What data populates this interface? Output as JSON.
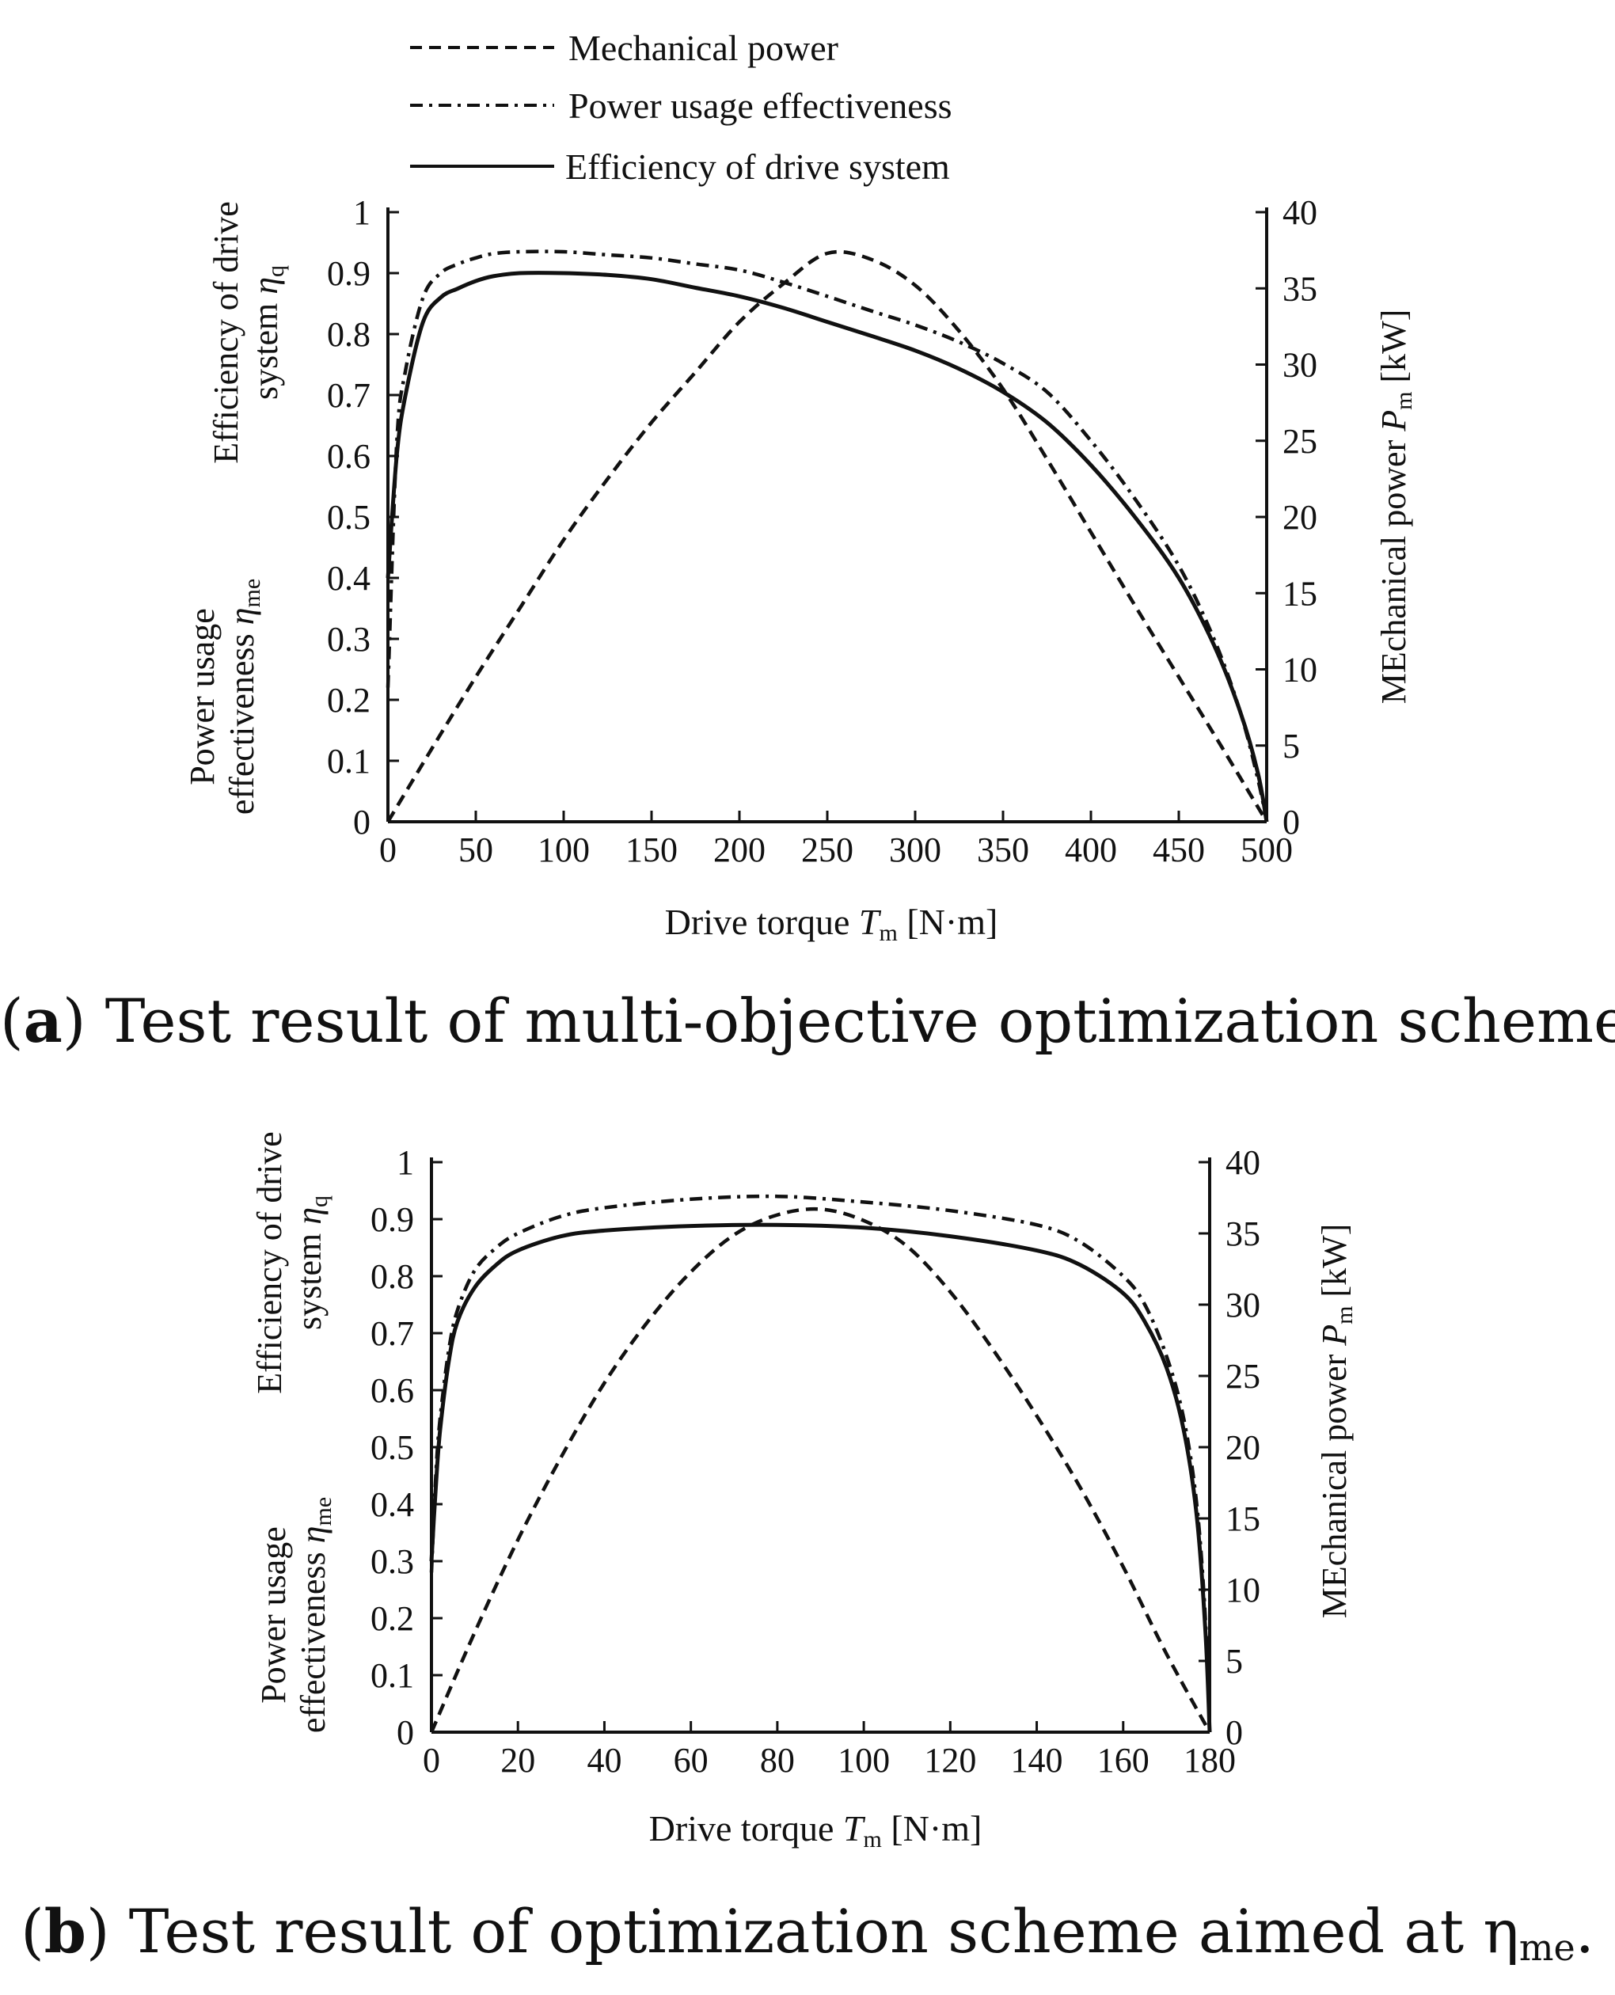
{
  "chart_data": [
    {
      "type": "line",
      "xlabel": "Drive torque T_m [N·m]",
      "xlim": [
        0,
        500
      ],
      "x_ticks": [
        "0",
        "50",
        "100",
        "150",
        "200",
        "250",
        "300",
        "350",
        "400",
        "450",
        "500"
      ],
      "ylabel_left": [
        "Power usage effectiveness η_me",
        "Efficiency of drive system η_q"
      ],
      "ylim_left": [
        0,
        1
      ],
      "y_ticks_left": [
        "0",
        "0.1",
        "0.2",
        "0.3",
        "0.4",
        "0.5",
        "0.6",
        "0.7",
        "0.8",
        "0.9",
        "1"
      ],
      "ylabel_right": "MEchanical power P_m [kW]",
      "ylim_right": [
        0,
        40
      ],
      "y_ticks_right": [
        "0",
        "5",
        "10",
        "15",
        "20",
        "25",
        "30",
        "35",
        "40"
      ],
      "grid": false,
      "legend_position": "top",
      "caption": "(a) Test result of multi-objective optimization scheme.",
      "series": [
        {
          "name": "Mechanical power",
          "axis": "right",
          "style": "dashed",
          "x": [
            0,
            25,
            50,
            75,
            100,
            125,
            150,
            175,
            200,
            225,
            250,
            275,
            300,
            325,
            350,
            375,
            400,
            425,
            450,
            475,
            500
          ],
          "y": [
            0,
            4.8,
            9.5,
            14.0,
            18.5,
            22.5,
            26.2,
            29.5,
            32.8,
            35.3,
            37.3,
            36.9,
            35.2,
            32.2,
            28.4,
            23.8,
            19.0,
            14.2,
            9.5,
            4.8,
            0
          ]
        },
        {
          "name": "Power usage effectiveness",
          "axis": "left",
          "style": "dash-dot",
          "x": [
            0,
            5,
            10,
            20,
            30,
            40,
            50,
            60,
            75,
            100,
            125,
            150,
            175,
            200,
            225,
            250,
            275,
            300,
            325,
            350,
            375,
            400,
            425,
            450,
            470,
            485,
            495,
            500
          ],
          "y": [
            0.22,
            0.62,
            0.74,
            0.86,
            0.9,
            0.915,
            0.925,
            0.932,
            0.935,
            0.935,
            0.93,
            0.925,
            0.915,
            0.905,
            0.885,
            0.862,
            0.838,
            0.815,
            0.787,
            0.752,
            0.705,
            0.625,
            0.53,
            0.42,
            0.3,
            0.18,
            0.07,
            0
          ]
        },
        {
          "name": "Efficiency of drive system",
          "axis": "left",
          "style": "solid",
          "x": [
            0,
            5,
            10,
            20,
            30,
            40,
            50,
            60,
            75,
            100,
            125,
            150,
            175,
            200,
            225,
            250,
            275,
            300,
            325,
            350,
            375,
            400,
            425,
            450,
            470,
            485,
            495,
            500
          ],
          "y": [
            0.4,
            0.6,
            0.7,
            0.82,
            0.86,
            0.875,
            0.887,
            0.895,
            0.9,
            0.9,
            0.897,
            0.89,
            0.876,
            0.862,
            0.843,
            0.82,
            0.797,
            0.773,
            0.743,
            0.705,
            0.655,
            0.585,
            0.5,
            0.4,
            0.29,
            0.18,
            0.08,
            0
          ]
        }
      ]
    },
    {
      "type": "line",
      "xlabel": "Drive torque T_m [N·m]",
      "xlim": [
        0,
        180
      ],
      "x_ticks": [
        "0",
        "20",
        "40",
        "60",
        "80",
        "100",
        "120",
        "140",
        "160",
        "180"
      ],
      "ylabel_left": [
        "Power usage effectiveness η_me",
        "Efficiency of drive system η_q"
      ],
      "ylim_left": [
        0,
        1
      ],
      "y_ticks_left": [
        "0",
        "0.1",
        "0.2",
        "0.3",
        "0.4",
        "0.5",
        "0.6",
        "0.7",
        "0.8",
        "0.9",
        "1"
      ],
      "ylabel_right": "MEchanical power P_m [kW]",
      "ylim_right": [
        0,
        40
      ],
      "y_ticks_right": [
        "0",
        "5",
        "10",
        "15",
        "20",
        "25",
        "30",
        "35",
        "40"
      ],
      "grid": false,
      "caption": "(b) Test result of optimization scheme aimed at η_me.",
      "series": [
        {
          "name": "Mechanical power",
          "axis": "right",
          "style": "dashed",
          "x": [
            0,
            10,
            20,
            30,
            40,
            50,
            60,
            70,
            80,
            90,
            100,
            110,
            120,
            130,
            140,
            150,
            160,
            170,
            180
          ],
          "y": [
            0,
            7.0,
            13.5,
            19.3,
            24.5,
            28.8,
            32.3,
            34.9,
            36.3,
            36.7,
            35.9,
            34.1,
            30.9,
            26.8,
            22.2,
            17.2,
            11.6,
            5.5,
            0
          ]
        },
        {
          "name": "Power usage effectiveness",
          "axis": "left",
          "style": "dash-dot",
          "x": [
            0,
            1,
            2,
            4,
            6,
            10,
            15,
            20,
            30,
            40,
            60,
            80,
            100,
            120,
            140,
            150,
            160,
            165,
            170,
            174,
            177,
            179,
            180
          ],
          "y": [
            0.28,
            0.45,
            0.55,
            0.67,
            0.74,
            0.81,
            0.85,
            0.875,
            0.905,
            0.92,
            0.935,
            0.94,
            0.93,
            0.915,
            0.89,
            0.86,
            0.8,
            0.75,
            0.66,
            0.55,
            0.4,
            0.2,
            0
          ]
        },
        {
          "name": "Efficiency of drive system",
          "axis": "left",
          "style": "solid",
          "x": [
            0,
            1,
            2,
            4,
            6,
            10,
            15,
            20,
            30,
            40,
            60,
            80,
            100,
            120,
            140,
            150,
            160,
            165,
            170,
            174,
            177,
            179,
            180
          ],
          "y": [
            0.3,
            0.43,
            0.53,
            0.65,
            0.72,
            0.78,
            0.82,
            0.845,
            0.87,
            0.88,
            0.888,
            0.89,
            0.885,
            0.87,
            0.845,
            0.82,
            0.77,
            0.72,
            0.64,
            0.53,
            0.38,
            0.18,
            0
          ]
        }
      ]
    }
  ],
  "legend": {
    "mechanical_power": "Mechanical power",
    "power_usage_effectiveness": "Power usage effectiveness",
    "efficiency_of_drive_system": "Efficiency of drive system"
  },
  "labels": {
    "x_title_main": "Drive torque ",
    "x_title_var": "T",
    "x_title_sub": "m",
    "x_title_unit": " [N·m]",
    "eff_line1": "Efficiency of drive",
    "eff_line2": "system ",
    "eff_sym": "η",
    "eff_sub": "q",
    "pue_line1": "Power usage",
    "pue_line2": "effectiveness ",
    "pue_sym": "η",
    "pue_sub": "me",
    "mech_main": "MEchanical power ",
    "mech_var": "P",
    "mech_sub": "m",
    "mech_unit": " [kW]"
  },
  "captions": {
    "a_open": "(",
    "a_letter": "a",
    "a_rest": ") Test result of multi-objective optimization scheme.",
    "b_open": "(",
    "b_letter": "b",
    "b_rest": ") Test result of optimization scheme aimed at η",
    "b_sub": "me",
    "b_end": "."
  }
}
